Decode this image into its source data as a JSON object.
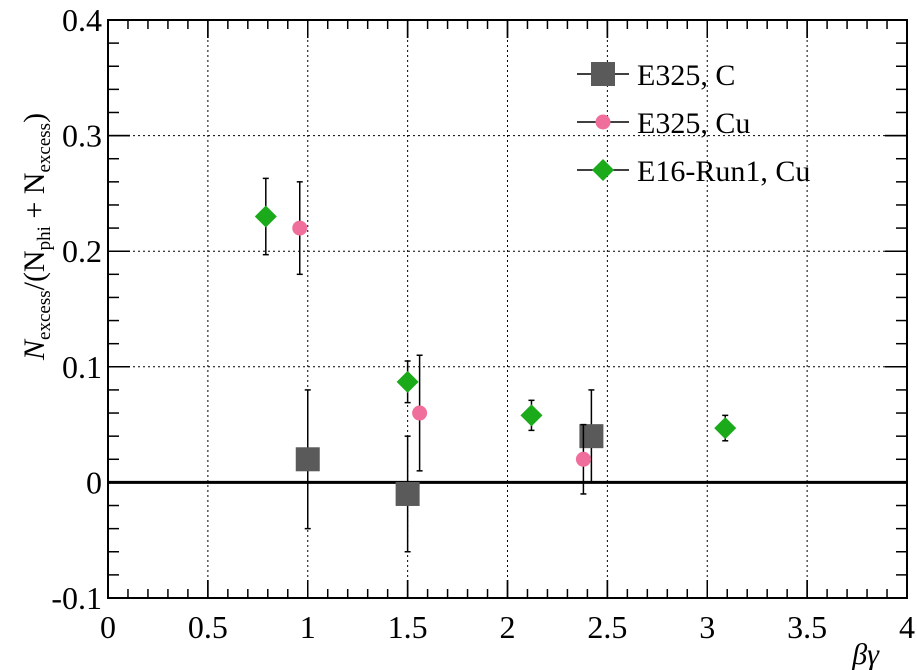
{
  "chart_data": {
    "type": "scatter",
    "xlabel": "βγ",
    "ylabel": "N_excess/(N_phi + N_excess)",
    "ylabel_parts": {
      "main1": "N",
      "sub1": "excess",
      "main2": "/(N",
      "sub2": "phi",
      "main3": " + N",
      "sub3": "excess",
      "main4": ")"
    },
    "xlim": [
      0,
      4
    ],
    "ylim": [
      -0.1,
      0.4
    ],
    "xticks": [
      0,
      0.5,
      1,
      1.5,
      2,
      2.5,
      3,
      3.5,
      4
    ],
    "xtick_labels": [
      "0",
      "0.5",
      "1",
      "1.5",
      "2",
      "2.5",
      "3",
      "3.5",
      "4"
    ],
    "yticks": [
      -0.1,
      0,
      0.1,
      0.2,
      0.3,
      0.4
    ],
    "ytick_labels": [
      "-0.1",
      "0",
      "0.1",
      "0.2",
      "0.3",
      "0.4"
    ],
    "grid": true,
    "zero_line": true,
    "legend_position": "top-right",
    "series": [
      {
        "name": "E325, C",
        "marker": "square",
        "color": "#5a5a5a",
        "points": [
          {
            "x": 1.0,
            "y": 0.02,
            "err_low": 0.06,
            "err_high": 0.06
          },
          {
            "x": 1.5,
            "y": -0.01,
            "err_low": 0.05,
            "err_high": 0.05
          },
          {
            "x": 2.42,
            "y": 0.04,
            "err_low": 0.04,
            "err_high": 0.04
          }
        ]
      },
      {
        "name": "E325, Cu",
        "marker": "circle",
        "color": "#f06e9b",
        "points": [
          {
            "x": 0.96,
            "y": 0.22,
            "err_low": 0.04,
            "err_high": 0.04
          },
          {
            "x": 1.56,
            "y": 0.06,
            "err_low": 0.05,
            "err_high": 0.05
          },
          {
            "x": 2.38,
            "y": 0.02,
            "err_low": 0.03,
            "err_high": 0.03
          }
        ]
      },
      {
        "name": "E16-Run1, Cu",
        "marker": "diamond",
        "color": "#1aaa1a",
        "points": [
          {
            "x": 0.79,
            "y": 0.23,
            "err_low": 0.033,
            "err_high": 0.033
          },
          {
            "x": 1.5,
            "y": 0.087,
            "err_low": 0.018,
            "err_high": 0.018
          },
          {
            "x": 2.12,
            "y": 0.058,
            "err_low": 0.013,
            "err_high": 0.013
          },
          {
            "x": 3.09,
            "y": 0.047,
            "err_low": 0.011,
            "err_high": 0.011
          }
        ]
      }
    ]
  }
}
